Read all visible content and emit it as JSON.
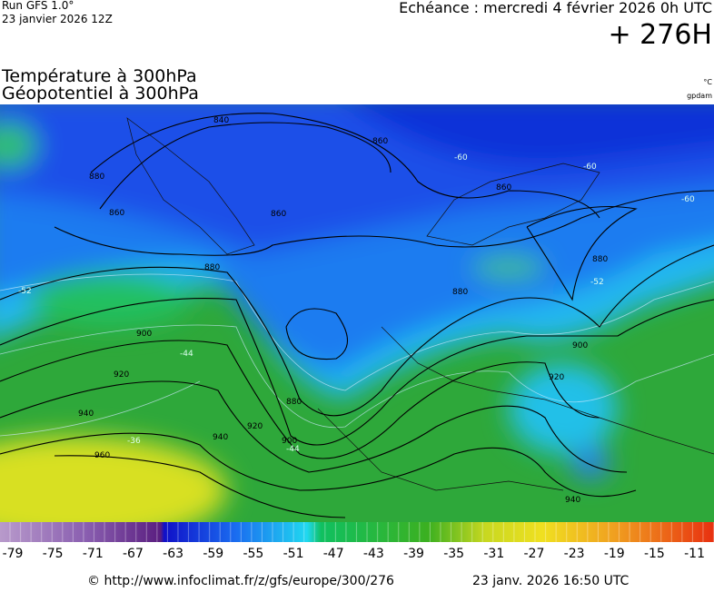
{
  "header": {
    "run": "Run GFS 1.0°",
    "run_date": "23 janvier 2026 12Z",
    "forecast": "Echéance : mercredi 4 février 2026 0h UTC",
    "lead": "+ 276H",
    "title_line1": "Température à 300hPa",
    "title_line2": "Géopotentiel à 300hPa",
    "unit_temp": "°C",
    "unit_geo": "gpdam"
  },
  "contours": [
    "880",
    "860",
    "840",
    "860",
    "880",
    "900",
    "920",
    "940",
    "960",
    "880",
    "900",
    "920",
    "940",
    "860",
    "880",
    "880",
    "900",
    "920",
    "940",
    "860",
    "-60",
    "-60",
    "-52",
    "-44",
    "-36",
    "-52",
    "-44",
    "-60"
  ],
  "colorbar": {
    "labels": [
      "-79",
      "-75",
      "-71",
      "-67",
      "-63",
      "-59",
      "-55",
      "-51",
      "-47",
      "-43",
      "-39",
      "-35",
      "-31",
      "-27",
      "-23",
      "-19",
      "-15",
      "-11"
    ]
  },
  "footer": {
    "url": "© http://www.infoclimat.fr/z/gfs/europe/300/276",
    "timestamp": "23 janv. 2026 16:50 UTC"
  }
}
